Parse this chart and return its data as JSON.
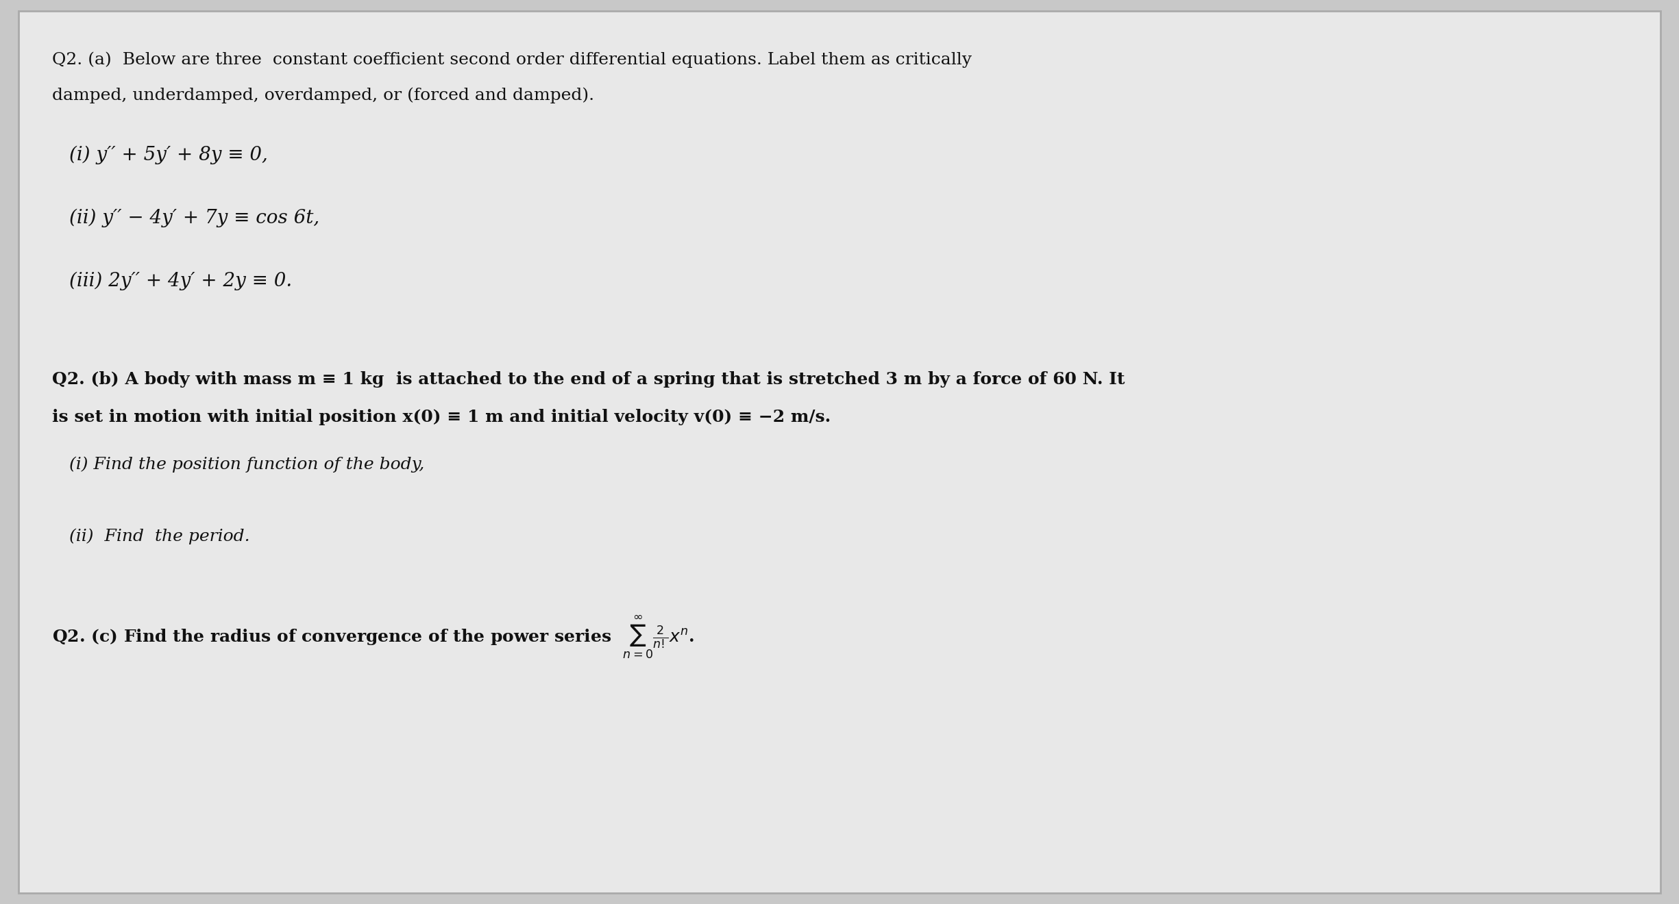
{
  "background_color": "#c8c8c8",
  "paper_color": "#e8e8e8",
  "text_color": "#111111",
  "title_q2a": "Q2. (a)  Below are three  constant coefficient second order differential equations. Label them as critically",
  "title_q2a_line2": "damped, underdamped, overdamped, or (forced and damped).",
  "eq1": "(i) y′′ + 5y′ + 8y ≡ 0,",
  "eq2": "(ii) y′′ − 4y′ + 7y ≡ cos 6t,",
  "eq3": "(iii) 2y′′ + 4y′ + 2y ≡ 0.",
  "q2b_line1": "Q2. (b) A body with mass m ≡ 1 kg  is attached to the end of a spring that is stretched 3 m by a force of 60 N. It",
  "q2b_line2": "is set in motion with initial position x(0) ≡ 1 m and initial velocity v(0) ≡ −2 m/s.",
  "q2b_i": "(i) Find the position function of the body,",
  "q2b_ii": "(ii)  Find  the period.",
  "q2c": "Q2. (c) Find the radius of convergence of the power series Σⁿol⁽₀ (2/n!) xⁿ.",
  "fontsize_main": 18,
  "fontsize_eq": 19,
  "fontsize_q2b": 17
}
